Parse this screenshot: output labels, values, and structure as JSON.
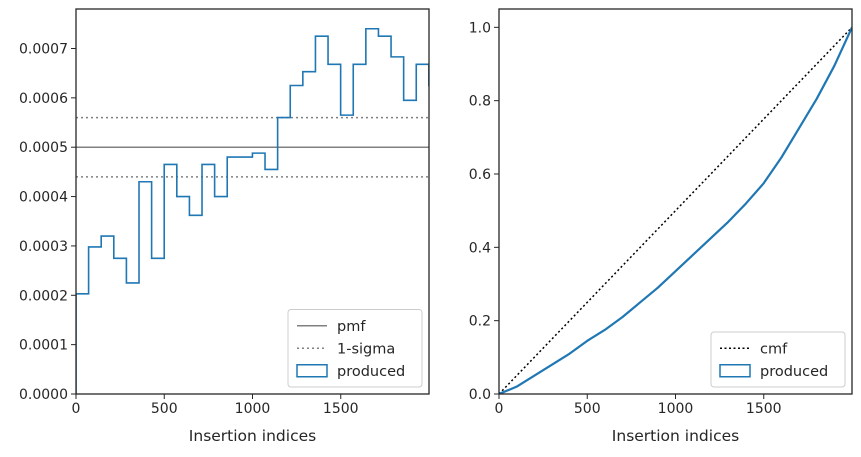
{
  "colors": {
    "hist": "#1f77b4",
    "pmf": "#808080",
    "sigma": "#808080",
    "cmf": "#000000",
    "axis": "#262626"
  },
  "chart_data": [
    {
      "type": "histogram",
      "xlabel": "Insertion indices",
      "ylabel": "",
      "xlim": [
        0,
        2000
      ],
      "ylim": [
        0,
        0.00078
      ],
      "x_ticks": [
        0,
        500,
        1000,
        1500
      ],
      "x_tick_labels": [
        "0",
        "500",
        "1000",
        "1500"
      ],
      "y_ticks": [
        0,
        0.0001,
        0.0002,
        0.0003,
        0.0004,
        0.0005,
        0.0006,
        0.0007
      ],
      "y_tick_labels": [
        "0.0000",
        "0.0001",
        "0.0002",
        "0.0003",
        "0.0004",
        "0.0005",
        "0.0006",
        "0.0007"
      ],
      "grid": false,
      "legend": {
        "position": "lower-right",
        "entries": [
          "pmf",
          "1-sigma",
          "produced"
        ]
      },
      "bin_width": 71.4,
      "series": [
        {
          "name": "produced",
          "values": [
            0.000203,
            0.000298,
            0.00032,
            0.000275,
            0.000225,
            0.00043,
            0.000275,
            0.000465,
            0.0004,
            0.000362,
            0.000465,
            0.0004,
            0.00048,
            0.00048,
            0.000488,
            0.000455,
            0.00056,
            0.000625,
            0.000653,
            0.000725,
            0.000668,
            0.000565,
            0.000668,
            0.00074,
            0.000725,
            0.000683,
            0.000595,
            0.000668,
            0.000625
          ]
        }
      ],
      "lines": [
        {
          "name": "pmf",
          "y": 0.0005
        },
        {
          "name": "1-sigma",
          "y": [
            0.00044,
            0.00056
          ]
        }
      ]
    },
    {
      "type": "line",
      "xlabel": "Insertion indices",
      "ylabel": "",
      "xlim": [
        0,
        2000
      ],
      "ylim": [
        0,
        1.05
      ],
      "x_ticks": [
        0,
        500,
        1000,
        1500
      ],
      "x_tick_labels": [
        "0",
        "500",
        "1000",
        "1500"
      ],
      "y_ticks": [
        0,
        0.2,
        0.4,
        0.6,
        0.8,
        1.0
      ],
      "y_tick_labels": [
        "0.0",
        "0.2",
        "0.4",
        "0.6",
        "0.8",
        "1.0"
      ],
      "grid": false,
      "legend": {
        "position": "lower-right",
        "entries": [
          "cmf",
          "produced"
        ]
      },
      "series": [
        {
          "name": "cmf",
          "x": [
            0,
            2000
          ],
          "y": [
            0,
            1
          ]
        },
        {
          "name": "produced",
          "x": [
            0,
            100,
            200,
            300,
            400,
            500,
            600,
            700,
            800,
            900,
            1000,
            1100,
            1200,
            1300,
            1400,
            1500,
            1600,
            1700,
            1800,
            1900,
            2000
          ],
          "y": [
            0,
            0.02,
            0.05,
            0.08,
            0.11,
            0.145,
            0.175,
            0.21,
            0.25,
            0.29,
            0.335,
            0.38,
            0.425,
            0.47,
            0.52,
            0.575,
            0.645,
            0.725,
            0.805,
            0.895,
            1.0
          ]
        }
      ]
    }
  ]
}
